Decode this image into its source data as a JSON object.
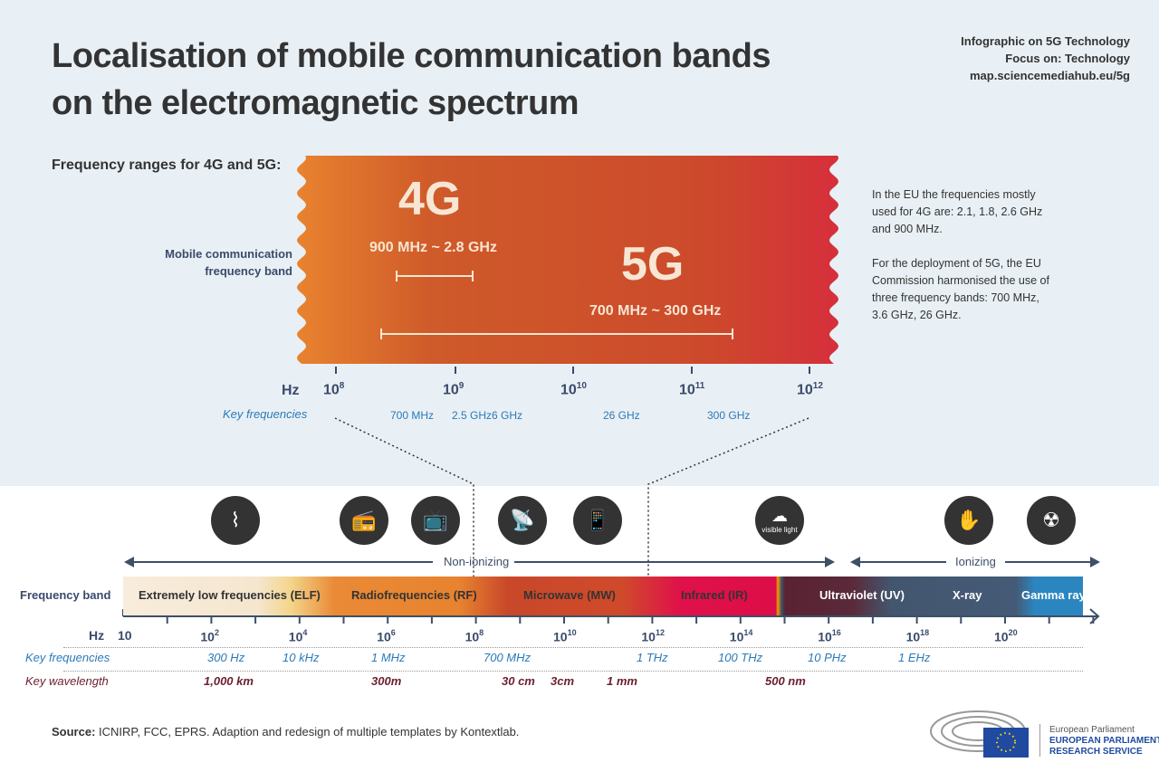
{
  "title_line1": "Localisation of mobile communication bands",
  "title_line2": "on the electromagnetic spectrum",
  "meta": [
    "Infographic on 5G Technology",
    "Focus on: Technology",
    "map.sciencemediahub.eu/5g"
  ],
  "subtitle": "Frequency ranges for 4G and 5G:",
  "mobile_band_label": "Mobile communication frequency band",
  "band_4g": {
    "label": "4G",
    "range": "900 MHz ~ 2.8 GHz"
  },
  "band_5g": {
    "label": "5G",
    "range": "700 MHz ~ 300 GHz"
  },
  "notes": [
    "In the EU the frequencies mostly used for 4G are: 2.1, 1.8, 2.6 GHz and 900 MHz.",
    "For the deployment of 5G, the EU Commission harmonised the use of three  frequency bands: 700 MHz, 3.6 GHz, 26 GHz."
  ],
  "upper_axis": {
    "unit": "Hz",
    "ticks": [
      "10",
      "10",
      "10",
      "10",
      "10"
    ],
    "exps": [
      "8",
      "9",
      "10",
      "11",
      "12"
    ],
    "key_label": "Key frequencies",
    "key": [
      "700 MHz",
      "2.5 GHz",
      "6 GHz",
      "26 GHz",
      "300 GHz"
    ]
  },
  "icons": [
    "power-pylon",
    "radio",
    "television",
    "antenna-tower",
    "smartphone",
    "visible-light",
    "x-ray-hand",
    "radiation"
  ],
  "visible_light": "visible light",
  "non_ionizing": "Non-ionizing",
  "ionizing": "Ionizing",
  "freq_band_label": "Frequency band",
  "bands": [
    "Extremely low frequencies (ELF)",
    "Radiofrequencies (RF)",
    "Microwave (MW)",
    "Infrared (IR)",
    "Ultraviolet (UV)",
    "X-ray",
    "Gamma ray"
  ],
  "lower_axis": {
    "unit": "Hz",
    "first": "10",
    "exps": [
      "2",
      "4",
      "6",
      "8",
      "10",
      "12",
      "14",
      "16",
      "18",
      "20"
    ]
  },
  "key_frequencies_label": "Key frequencies",
  "key_frequencies": [
    "300 Hz",
    "10 kHz",
    "1 MHz",
    "700 MHz",
    "1 THz",
    "100 THz",
    "10 PHz",
    "1 EHz"
  ],
  "key_wavelength_label": "Key wavelength",
  "key_wavelengths": [
    "1,000 km",
    "300m",
    "30 cm",
    "3cm",
    "1 mm",
    "500 nm"
  ],
  "source_label": "Source:",
  "source": " ICNIRP, FCC, EPRS. Adaption and redesign of multiple templates by Kontextlab.",
  "logo": {
    "line1": "European Parliament",
    "line2": "EUROPEAN PARLIAMENTARY",
    "line3": "RESEARCH SERVICE"
  }
}
